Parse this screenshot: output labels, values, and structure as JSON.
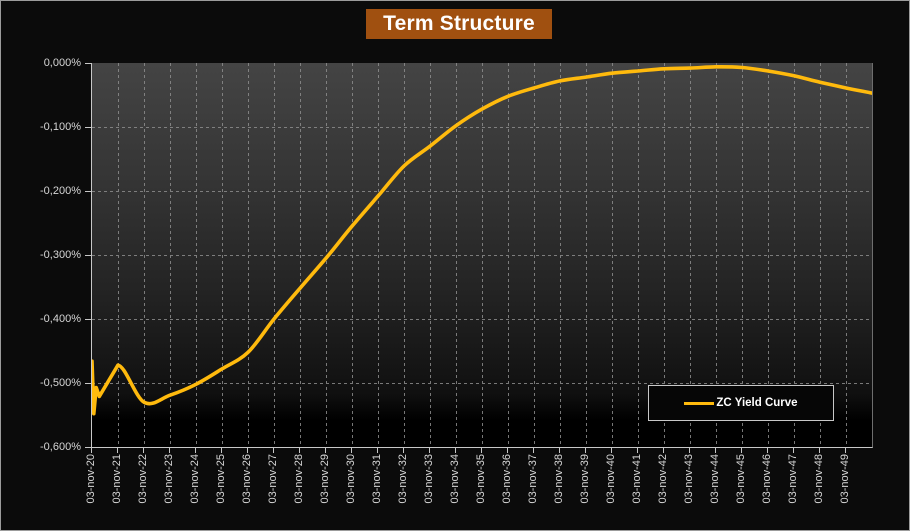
{
  "chart_data": {
    "type": "line",
    "title": "Term Structure",
    "legend": {
      "label": "ZC Yield Curve",
      "position": "bottom-right"
    },
    "grid": true,
    "y_axis": {
      "tick_labels": [
        "0,000%",
        "-0,100%",
        "-0,200%",
        "-0,300%",
        "-0,400%",
        "-0,500%",
        "-0,600%"
      ],
      "range_pct": [
        -0.6,
        0.0
      ]
    },
    "x_axis": {
      "tick_labels": [
        "03-nov-20",
        "03-nov-21",
        "03-nov-22",
        "03-nov-23",
        "03-nov-24",
        "03-nov-25",
        "03-nov-26",
        "03-nov-27",
        "03-nov-28",
        "03-nov-29",
        "03-nov-30",
        "03-nov-31",
        "03-nov-32",
        "03-nov-33",
        "03-nov-34",
        "03-nov-35",
        "03-nov-36",
        "03-nov-37",
        "03-nov-38",
        "03-nov-39",
        "03-nov-40",
        "03-nov-41",
        "03-nov-42",
        "03-nov-43",
        "03-nov-44",
        "03-nov-45",
        "03-nov-46",
        "03-nov-47",
        "03-nov-48",
        "03-nov-49"
      ]
    },
    "series": [
      {
        "name": "ZC Yield Curve",
        "color": "#ffba0d",
        "x_is_years_after_first_tick": true,
        "points": [
          [
            0,
            -0.466
          ],
          [
            0.07,
            -0.548
          ],
          [
            0.16,
            -0.507
          ],
          [
            0.28,
            -0.521
          ],
          [
            1,
            -0.472
          ],
          [
            2,
            -0.53
          ],
          [
            3,
            -0.519
          ],
          [
            4,
            -0.502
          ],
          [
            5,
            -0.478
          ],
          [
            6,
            -0.452
          ],
          [
            7,
            -0.4
          ],
          [
            8,
            -0.352
          ],
          [
            9,
            -0.305
          ],
          [
            10,
            -0.255
          ],
          [
            11,
            -0.208
          ],
          [
            12,
            -0.161
          ],
          [
            13,
            -0.13
          ],
          [
            14,
            -0.098
          ],
          [
            15,
            -0.072
          ],
          [
            16,
            -0.052
          ],
          [
            17,
            -0.039
          ],
          [
            18,
            -0.028
          ],
          [
            19,
            -0.022
          ],
          [
            20,
            -0.016
          ],
          [
            21,
            -0.0125
          ],
          [
            22,
            -0.009
          ],
          [
            23,
            -0.008
          ],
          [
            24,
            -0.006
          ],
          [
            25,
            -0.007
          ],
          [
            26,
            -0.0125
          ],
          [
            27,
            -0.02
          ],
          [
            28,
            -0.03
          ],
          [
            29,
            -0.039
          ],
          [
            30,
            -0.047
          ]
        ],
        "sharp_until_index": 4
      }
    ],
    "colors": {
      "banner_background": "#a05010",
      "title_text": "#ffffff",
      "line": "#ffba0d",
      "axis": "#c8c8c8",
      "gridline": "#8c8c8c",
      "tick_label": "#d6d6d6",
      "plot_gradient_top": "#444444",
      "plot_gradient_bottom": "#000000",
      "background": "#0b0b0b"
    }
  }
}
